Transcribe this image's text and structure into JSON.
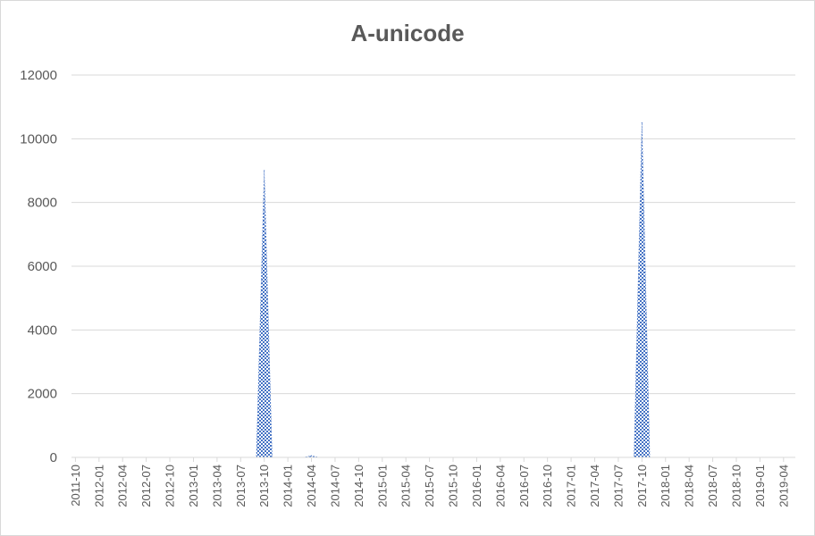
{
  "chart_data": {
    "type": "area",
    "title": "A-unicode",
    "xlabel": "",
    "ylabel": "",
    "ylim": [
      0,
      12000
    ],
    "yticks": [
      0,
      2000,
      4000,
      6000,
      8000,
      10000,
      12000
    ],
    "grid": true,
    "legend": "none",
    "fill_color": "#4472c4",
    "categories": [
      "2011-10",
      "2011-11",
      "2011-12",
      "2012-01",
      "2012-02",
      "2012-03",
      "2012-04",
      "2012-05",
      "2012-06",
      "2012-07",
      "2012-08",
      "2012-09",
      "2012-10",
      "2012-11",
      "2012-12",
      "2013-01",
      "2013-02",
      "2013-03",
      "2013-04",
      "2013-05",
      "2013-06",
      "2013-07",
      "2013-08",
      "2013-09",
      "2013-10",
      "2013-11",
      "2013-12",
      "2014-01",
      "2014-02",
      "2014-03",
      "2014-04",
      "2014-05",
      "2014-06",
      "2014-07",
      "2014-08",
      "2014-09",
      "2014-10",
      "2014-11",
      "2014-12",
      "2015-01",
      "2015-02",
      "2015-03",
      "2015-04",
      "2015-05",
      "2015-06",
      "2015-07",
      "2015-08",
      "2015-09",
      "2015-10",
      "2015-11",
      "2015-12",
      "2016-01",
      "2016-02",
      "2016-03",
      "2016-04",
      "2016-05",
      "2016-06",
      "2016-07",
      "2016-08",
      "2016-09",
      "2016-10",
      "2016-11",
      "2016-12",
      "2017-01",
      "2017-02",
      "2017-03",
      "2017-04",
      "2017-05",
      "2017-06",
      "2017-07",
      "2017-08",
      "2017-09",
      "2017-10",
      "2017-11",
      "2017-12",
      "2018-01",
      "2018-02",
      "2018-03",
      "2018-04",
      "2018-05",
      "2018-06",
      "2018-07",
      "2018-08",
      "2018-09",
      "2018-10",
      "2018-11",
      "2018-12",
      "2019-01",
      "2019-02",
      "2019-03",
      "2019-04",
      "2019-05"
    ],
    "tick_labels": [
      "2011-10",
      "2012-01",
      "2012-04",
      "2012-07",
      "2012-10",
      "2013-01",
      "2013-04",
      "2013-07",
      "2013-10",
      "2014-01",
      "2014-04",
      "2014-07",
      "2014-10",
      "2015-01",
      "2015-04",
      "2015-07",
      "2015-10",
      "2016-01",
      "2016-04",
      "2016-07",
      "2016-10",
      "2017-01",
      "2017-04",
      "2017-07",
      "2017-10",
      "2018-01",
      "2018-04",
      "2018-07",
      "2018-10",
      "2019-01",
      "2019-04"
    ],
    "series": [
      {
        "values": [
          0,
          0,
          0,
          0,
          0,
          0,
          0,
          0,
          0,
          0,
          0,
          0,
          0,
          0,
          0,
          0,
          0,
          0,
          0,
          0,
          0,
          0,
          0,
          0,
          9000,
          0,
          0,
          0,
          0,
          0,
          50,
          0,
          0,
          0,
          0,
          0,
          0,
          0,
          0,
          0,
          0,
          0,
          0,
          0,
          0,
          0,
          0,
          0,
          0,
          0,
          0,
          0,
          0,
          0,
          0,
          0,
          0,
          0,
          0,
          0,
          0,
          0,
          0,
          0,
          0,
          0,
          0,
          0,
          0,
          0,
          0,
          0,
          10500,
          0,
          0,
          0,
          0,
          0,
          0,
          0,
          0,
          0,
          0,
          0,
          0,
          0,
          0,
          0,
          0,
          0,
          0,
          0
        ]
      }
    ]
  }
}
